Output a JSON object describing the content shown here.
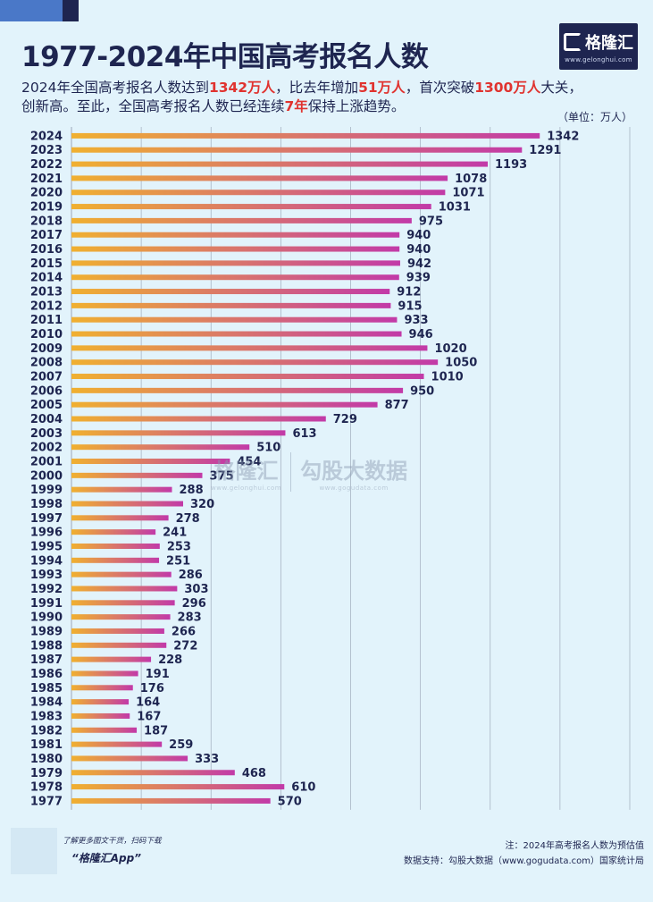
{
  "header": {
    "title": "1977-2024年中国高考报名人数",
    "subtitle_line1": [
      {
        "text": "2024年全国高考报名人数达到",
        "hl": false
      },
      {
        "text": "1342万人",
        "hl": true
      },
      {
        "text": "，比去年增加",
        "hl": false
      },
      {
        "text": "51万人",
        "hl": true
      },
      {
        "text": "，首次突破",
        "hl": false
      },
      {
        "text": "1300万人",
        "hl": true
      },
      {
        "text": "大关，",
        "hl": false
      }
    ],
    "subtitle_line2": [
      {
        "text": "创新高。至此，全国高考报名人数已经连续",
        "hl": false
      },
      {
        "text": "7年",
        "hl": true
      },
      {
        "text": "保持上涨趋势。",
        "hl": false
      }
    ],
    "unit": "（单位：万人）"
  },
  "logo": {
    "name": "格隆汇",
    "url": "www.gelonghui.com"
  },
  "watermark": {
    "brand1": "格隆汇",
    "url1": "www.gelonghui.com",
    "brand2": "勾股大数据",
    "url2": "www.gogudata.com"
  },
  "footer": {
    "left_line1": "了解更多图文干货，扫码下载",
    "left_line2": "“格隆汇App”",
    "note": "注：2024年高考报名人数为预估值",
    "source": "数据支持：勾股大数据（www.gogudata.com）国家统计局"
  },
  "colors": {
    "bar_start": "#f0b030",
    "bar_end": "#c23aa8",
    "text": "#1e2550",
    "grid": "#a8b4c4"
  },
  "chart_data": {
    "type": "bar",
    "orientation": "horizontal",
    "title": "1977-2024年中国高考报名人数",
    "unit": "万人",
    "xlim": [
      0,
      1600
    ],
    "grid_step": 200,
    "grid": true,
    "categories": [
      "2024",
      "2023",
      "2022",
      "2021",
      "2020",
      "2019",
      "2018",
      "2017",
      "2016",
      "2015",
      "2014",
      "2013",
      "2012",
      "2011",
      "2010",
      "2009",
      "2008",
      "2007",
      "2006",
      "2005",
      "2004",
      "2003",
      "2002",
      "2001",
      "2000",
      "1999",
      "1998",
      "1997",
      "1996",
      "1995",
      "1994",
      "1993",
      "1992",
      "1991",
      "1990",
      "1989",
      "1988",
      "1987",
      "1986",
      "1985",
      "1984",
      "1983",
      "1982",
      "1981",
      "1980",
      "1979",
      "1978",
      "1977"
    ],
    "values": [
      1342,
      1291,
      1193,
      1078,
      1071,
      1031,
      975,
      940,
      940,
      942,
      939,
      912,
      915,
      933,
      946,
      1020,
      1050,
      1010,
      950,
      877,
      729,
      613,
      510,
      454,
      375,
      288,
      320,
      278,
      241,
      253,
      251,
      286,
      303,
      296,
      283,
      266,
      272,
      228,
      191,
      176,
      164,
      167,
      187,
      259,
      333,
      468,
      610,
      570
    ]
  }
}
